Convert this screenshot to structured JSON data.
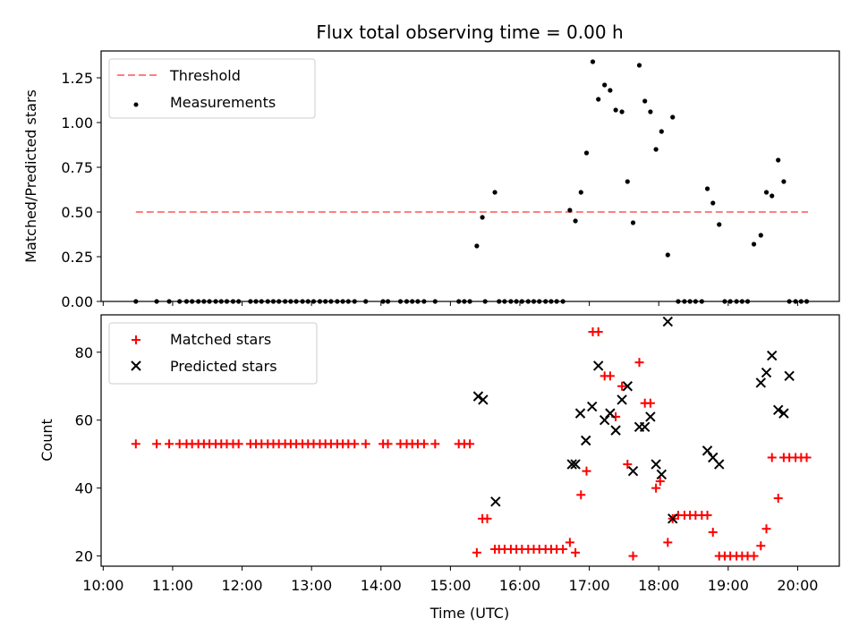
{
  "chart_data": [
    {
      "type": "scatter",
      "title": "Flux total observing time = 0.00 h",
      "ylabel": "Matched/Predicted stars",
      "ylim": [
        0,
        1.4
      ],
      "yticks": [
        "0.00",
        "0.25",
        "0.50",
        "0.75",
        "1.00",
        "1.25"
      ],
      "ytick_values": [
        0,
        0.25,
        0.5,
        0.75,
        1.0,
        1.25
      ],
      "threshold": {
        "label": "Threshold",
        "value": 0.5,
        "x_start": 10.47,
        "x_end": 20.15,
        "color": "#ff7f7f"
      },
      "measurements": {
        "label": "Measurements",
        "color": "#000000",
        "x": [
          10.47,
          10.77,
          10.95,
          11.1,
          11.2,
          11.28,
          11.37,
          11.45,
          11.53,
          11.62,
          11.7,
          11.78,
          11.87,
          11.95,
          12.12,
          12.2,
          12.28,
          12.37,
          12.45,
          12.53,
          12.62,
          12.7,
          12.78,
          12.87,
          12.95,
          13.03,
          13.12,
          13.2,
          13.28,
          13.37,
          13.45,
          13.53,
          13.62,
          13.78,
          14.03,
          14.1,
          14.28,
          14.37,
          14.45,
          14.53,
          14.62,
          14.78,
          15.12,
          15.2,
          15.28,
          15.38,
          15.46,
          15.5,
          15.64,
          15.7,
          15.78,
          15.87,
          15.95,
          16.03,
          16.12,
          16.2,
          16.28,
          16.37,
          16.45,
          16.53,
          16.62,
          16.72,
          16.8,
          16.88,
          16.96,
          17.05,
          17.13,
          17.22,
          17.3,
          17.38,
          17.47,
          17.55,
          17.63,
          17.72,
          17.8,
          17.88,
          17.96,
          18.04,
          18.13,
          18.2,
          18.28,
          18.37,
          18.45,
          18.53,
          18.62,
          18.7,
          18.78,
          18.87,
          18.95,
          19.03,
          19.12,
          19.2,
          19.28,
          19.37,
          19.47,
          19.55,
          19.63,
          19.72,
          19.8,
          19.88,
          19.97,
          20.05,
          20.13
        ],
        "y": [
          0,
          0,
          0,
          0,
          0,
          0,
          0,
          0,
          0,
          0,
          0,
          0,
          0,
          0,
          0,
          0,
          0,
          0,
          0,
          0,
          0,
          0,
          0,
          0,
          0,
          0,
          0,
          0,
          0,
          0,
          0,
          0,
          0,
          0,
          0,
          0,
          0,
          0,
          0,
          0,
          0,
          0,
          0,
          0,
          0,
          0.31,
          0.47,
          0,
          0.61,
          0,
          0,
          0,
          0,
          0,
          0,
          0,
          0,
          0,
          0,
          0,
          0,
          0.51,
          0.45,
          0.61,
          0.83,
          1.34,
          1.13,
          1.21,
          1.18,
          1.07,
          1.06,
          0.67,
          0.44,
          1.32,
          1.12,
          1.06,
          0.85,
          0.95,
          0.26,
          1.03,
          0,
          0,
          0,
          0,
          0,
          0.63,
          0.55,
          0.43,
          0,
          0,
          0,
          0,
          0,
          0.32,
          0.37,
          0.61,
          0.59,
          0.79,
          0.67,
          0,
          0,
          0,
          0
        ]
      }
    },
    {
      "type": "scatter",
      "xlabel": "Time (UTC)",
      "ylabel": "Count",
      "ylim": [
        17,
        91
      ],
      "yticks": [
        "20",
        "40",
        "60",
        "80"
      ],
      "ytick_values": [
        20,
        40,
        60,
        80
      ],
      "xlim": [
        9.97,
        20.6
      ],
      "xticks": [
        "10:00",
        "11:00",
        "12:00",
        "13:00",
        "14:00",
        "15:00",
        "16:00",
        "17:00",
        "18:00",
        "19:00",
        "20:00"
      ],
      "xtick_values": [
        10,
        11,
        12,
        13,
        14,
        15,
        16,
        17,
        18,
        19,
        20
      ],
      "matched": {
        "label": "Matched stars",
        "color": "#ff0000",
        "x": [
          10.47,
          10.77,
          10.95,
          11.1,
          11.2,
          11.28,
          11.37,
          11.45,
          11.53,
          11.62,
          11.7,
          11.78,
          11.87,
          11.95,
          12.12,
          12.2,
          12.28,
          12.37,
          12.45,
          12.53,
          12.62,
          12.7,
          12.78,
          12.87,
          12.95,
          13.03,
          13.12,
          13.2,
          13.28,
          13.37,
          13.45,
          13.53,
          13.62,
          13.78,
          14.03,
          14.1,
          14.28,
          14.37,
          14.45,
          14.53,
          14.62,
          14.78,
          15.12,
          15.2,
          15.28,
          15.38,
          15.46,
          15.53,
          15.64,
          15.7,
          15.78,
          15.87,
          15.95,
          16.03,
          16.12,
          16.2,
          16.28,
          16.37,
          16.45,
          16.53,
          16.62,
          16.72,
          16.8,
          16.88,
          16.96,
          17.05,
          17.13,
          17.22,
          17.3,
          17.38,
          17.47,
          17.55,
          17.63,
          17.72,
          17.8,
          17.88,
          17.96,
          18.02,
          18.13,
          18.2,
          18.28,
          18.37,
          18.45,
          18.53,
          18.62,
          18.7,
          18.78,
          18.87,
          18.95,
          19.03,
          19.12,
          19.2,
          19.28,
          19.37,
          19.47,
          19.55,
          19.63,
          19.72,
          19.8,
          19.88,
          19.97,
          20.05,
          20.13
        ],
        "y": [
          53,
          53,
          53,
          53,
          53,
          53,
          53,
          53,
          53,
          53,
          53,
          53,
          53,
          53,
          53,
          53,
          53,
          53,
          53,
          53,
          53,
          53,
          53,
          53,
          53,
          53,
          53,
          53,
          53,
          53,
          53,
          53,
          53,
          53,
          53,
          53,
          53,
          53,
          53,
          53,
          53,
          53,
          53,
          53,
          53,
          21,
          31,
          31,
          22,
          22,
          22,
          22,
          22,
          22,
          22,
          22,
          22,
          22,
          22,
          22,
          22,
          24,
          21,
          38,
          45,
          86,
          86,
          73,
          73,
          61,
          70,
          47,
          20,
          77,
          65,
          65,
          40,
          42,
          24,
          31,
          32,
          32,
          32,
          32,
          32,
          32,
          27,
          20,
          20,
          20,
          20,
          20,
          20,
          20,
          23,
          28,
          49,
          37,
          49,
          49,
          49,
          49,
          49
        ]
      },
      "predicted": {
        "label": "Predicted stars",
        "color": "#000000",
        "x": [
          15.4,
          15.47,
          15.65,
          16.75,
          16.8,
          16.87,
          16.95,
          17.04,
          17.13,
          17.22,
          17.3,
          17.38,
          17.47,
          17.55,
          17.63,
          17.72,
          17.8,
          17.88,
          17.96,
          18.04,
          18.13,
          18.2,
          18.7,
          18.78,
          18.87,
          19.47,
          19.55,
          19.63,
          19.72,
          19.8,
          19.88
        ],
        "y": [
          67,
          66,
          36,
          47,
          47,
          62,
          54,
          64,
          76,
          60,
          62,
          57,
          66,
          70,
          45,
          58,
          58,
          61,
          47,
          44,
          89,
          31,
          51,
          49,
          47,
          71,
          74,
          79,
          63,
          62,
          73
        ]
      }
    }
  ]
}
